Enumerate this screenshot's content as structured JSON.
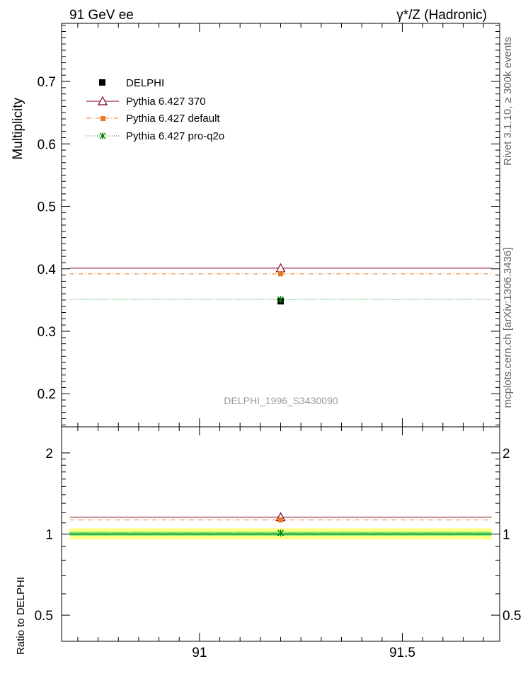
{
  "header": {
    "left_title": "91 GeV ee",
    "right_title": "γ*/Z (Hadronic)"
  },
  "side_labels": {
    "rivet": "Rivet 3.1.10, ≥ 300k events",
    "mcplots": "mcplots.cern.ch [arXiv:1306.3436]"
  },
  "analysis_id": "DELPHI_1996_S3430090",
  "colors": {
    "delphi": "#000000",
    "p370": "#800020",
    "default": "#ee7722",
    "proq2o": "#008000",
    "band_inner": "#80ff80",
    "band_outer": "#ffff80"
  },
  "chart_data": [
    {
      "type": "scatter",
      "ylabel": "Multiplicity",
      "xlim": [
        90.66,
        91.74
      ],
      "ylim": [
        0.147,
        0.793
      ],
      "yticks": [
        0.2,
        0.3,
        0.4,
        0.5,
        0.6,
        0.7
      ],
      "ytick_labels": [
        "0.2",
        "0.3",
        "0.4",
        "0.5",
        "0.6",
        "0.7"
      ],
      "legend_position": "top-left",
      "series": [
        {
          "name": "DELPHI",
          "marker": "square",
          "x": [
            91.2
          ],
          "y": [
            0.348
          ],
          "yerr": [
            0.003
          ]
        },
        {
          "name": "Pythia 6.427 370",
          "marker": "triangle-open",
          "line": "solid",
          "x": [
            91.2
          ],
          "y": [
            0.401
          ],
          "xrange": [
            90.68,
            91.72
          ]
        },
        {
          "name": "Pythia 6.427 default",
          "marker": "square",
          "line": "dashdot",
          "x": [
            91.2
          ],
          "y": [
            0.392
          ],
          "xrange": [
            90.68,
            91.72
          ]
        },
        {
          "name": "Pythia 6.427 pro-q2o",
          "marker": "star",
          "line": "dotted",
          "x": [
            91.2
          ],
          "y": [
            0.351
          ],
          "xrange": [
            90.68,
            91.72
          ]
        }
      ]
    },
    {
      "type": "scatter",
      "ylabel": "Ratio to DELPHI",
      "xlim": [
        90.66,
        91.74
      ],
      "ylim": [
        0.4,
        2.5
      ],
      "log_y": true,
      "yticks": [
        0.5,
        1,
        2
      ],
      "ytick_labels": [
        "0.5",
        "1",
        "2"
      ],
      "xticks": [
        91,
        91.5
      ],
      "xtick_labels": [
        "91",
        "91.5"
      ],
      "band": {
        "inner": [
          0.985,
          1.02
        ],
        "outer": [
          0.955,
          1.05
        ],
        "xrange": [
          90.68,
          91.72
        ]
      },
      "series": [
        {
          "name": "Pythia 6.427 370",
          "x": [
            91.2
          ],
          "y": [
            1.155
          ]
        },
        {
          "name": "Pythia 6.427 default",
          "x": [
            91.2
          ],
          "y": [
            1.128
          ]
        },
        {
          "name": "Pythia 6.427 pro-q2o",
          "x": [
            91.2
          ],
          "y": [
            1.01
          ]
        }
      ]
    }
  ]
}
